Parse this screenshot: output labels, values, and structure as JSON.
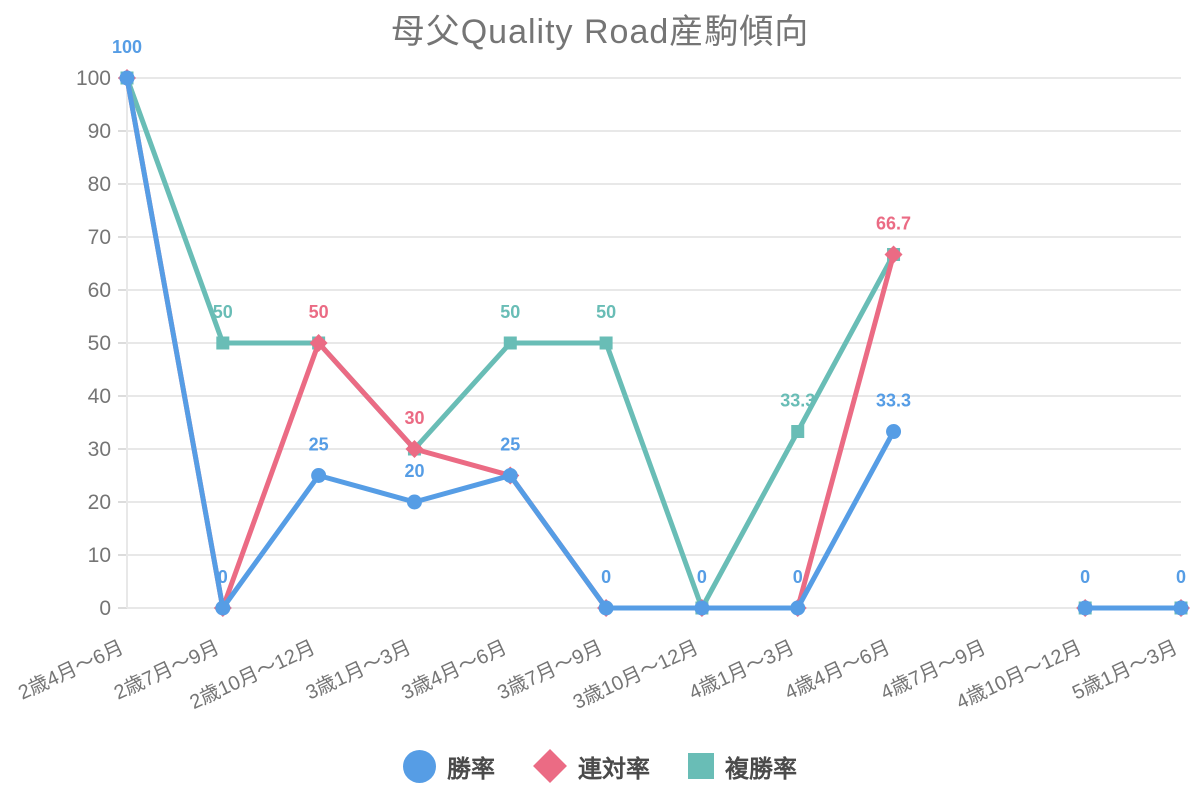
{
  "chart_data": {
    "type": "line",
    "title": "母父Quality Road産駒傾向",
    "categories": [
      "2歳4月～6月",
      "2歳7月～9月",
      "2歳10月～12月",
      "3歳1月～3月",
      "3歳4月～6月",
      "3歳7月～9月",
      "3歳10月～12月",
      "4歳1月～3月",
      "4歳4月～6月",
      "4歳7月～9月",
      "4歳10月～12月",
      "5歳1月～3月"
    ],
    "series": [
      {
        "id": "win-rate",
        "name": "勝率",
        "marker": "circle",
        "color": "#569DE5",
        "values": [
          100,
          0,
          25,
          20,
          25,
          0,
          0,
          0,
          33.3,
          null,
          0,
          0
        ]
      },
      {
        "id": "quinella-rate",
        "name": "連対率",
        "marker": "diamond",
        "color": "#EB6B84",
        "values": [
          100,
          0,
          50,
          30,
          25,
          0,
          0,
          0,
          66.7,
          null,
          0,
          0
        ]
      },
      {
        "id": "show-rate",
        "name": "複勝率",
        "marker": "square",
        "color": "#69BDB6",
        "values": [
          100,
          50,
          50,
          30,
          50,
          50,
          0,
          33.3,
          66.7,
          null,
          0,
          0
        ]
      }
    ],
    "ylim": [
      0,
      100
    ],
    "ytick_step": 10,
    "grid": true,
    "legend_position": "bottom",
    "notes": "point labels shown per visible series; overlapping labels hidden (priority 勝率 > 連対率 > 複勝率); no data at 4歳7月～9月"
  },
  "colors": {
    "background": "#FFFFFF",
    "title_text": "#757575",
    "axis_text": "#757575",
    "grid_line": "#E8E8E8",
    "tick_line": "#DCDCDC",
    "legend_text": "#4A4A4A"
  }
}
